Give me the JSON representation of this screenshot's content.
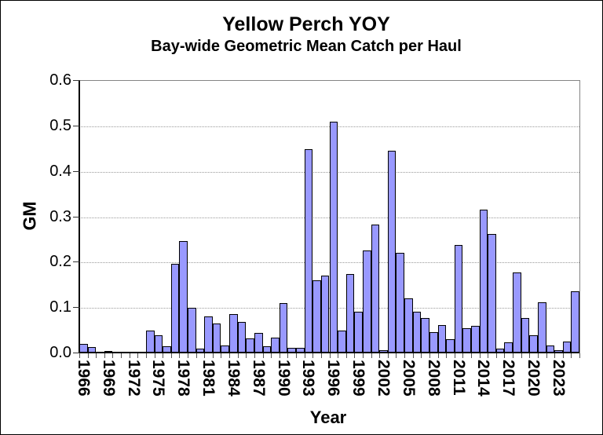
{
  "chart_data": {
    "type": "bar",
    "title": "Yellow Perch YOY",
    "subtitle": "Bay-wide Geometric Mean Catch per Haul",
    "xlabel": "Year",
    "ylabel": "GM",
    "ylim": [
      0,
      0.6
    ],
    "ytick_step": 0.1,
    "ytick_labels": [
      "0.0",
      "0.1",
      "0.2",
      "0.3",
      "0.4",
      "0.5",
      "0.6"
    ],
    "xtick_labels_shown": [
      "1966",
      "1969",
      "1972",
      "1975",
      "1978",
      "1981",
      "1984",
      "1987",
      "1990",
      "1993",
      "1996",
      "1999",
      "2002",
      "2005",
      "2008",
      "2011",
      "2014",
      "2017",
      "2020",
      "2023"
    ],
    "xtick_label_every": 3,
    "grid": "horizontal-dotted",
    "legend": "none",
    "bar_fill": "#9999FF",
    "bar_border": "#000000",
    "categories": [
      1966,
      1967,
      1968,
      1969,
      1970,
      1971,
      1972,
      1973,
      1974,
      1975,
      1976,
      1977,
      1978,
      1979,
      1980,
      1981,
      1982,
      1983,
      1984,
      1985,
      1986,
      1987,
      1988,
      1989,
      1990,
      1991,
      1992,
      1993,
      1994,
      1995,
      1996,
      1997,
      1998,
      1999,
      2000,
      2001,
      2002,
      2003,
      2004,
      2005,
      2006,
      2007,
      2008,
      2009,
      2010,
      2011,
      2012,
      2013,
      2014,
      2015,
      2016,
      2017,
      2018,
      2019,
      2020,
      2021,
      2022,
      2023,
      2024,
      2025
    ],
    "values": [
      0.02,
      0.013,
      0,
      0.005,
      0,
      0,
      0,
      0,
      0.051,
      0.04,
      0.015,
      0.197,
      0.247,
      0.101,
      0.01,
      0.082,
      0.066,
      0.018,
      0.087,
      0.07,
      0.033,
      0.045,
      0.015,
      0.035,
      0.111,
      0.012,
      0.012,
      0.45,
      0.16,
      0.172,
      0.51,
      0.05,
      0.175,
      0.091,
      0.227,
      0.284,
      0.007,
      0.447,
      0.221,
      0.121,
      0.091,
      0.078,
      0.047,
      0.062,
      0.031,
      0.239,
      0.056,
      0.06,
      0.317,
      0.262,
      0.011,
      0.024,
      0.178,
      0.078,
      0.039,
      0.113,
      0.018,
      0.007,
      0.026,
      0.136
    ]
  }
}
